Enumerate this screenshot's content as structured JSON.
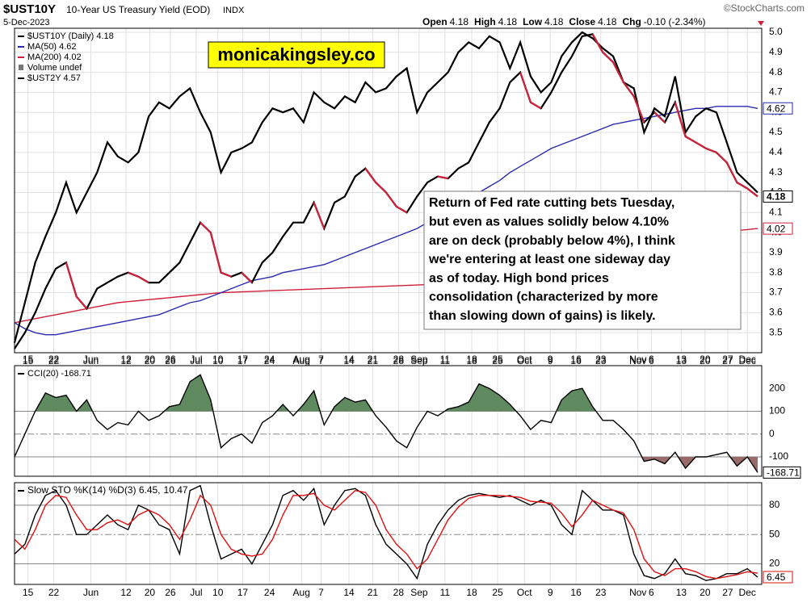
{
  "header": {
    "symbol": "$UST10Y",
    "name": "10-Year US Treasury Yield (EOD)",
    "exchange": "INDX",
    "date": "5-Dec-2023",
    "credit": "©StockCharts.com",
    "quote": [
      {
        "label": "Open",
        "value": 4.18
      },
      {
        "label": "High",
        "value": 4.18
      },
      {
        "label": "Low",
        "value": 4.18
      },
      {
        "label": "Close",
        "value": 4.18
      },
      {
        "label": "Chg",
        "value": "-0.10 (-2.34%)"
      }
    ]
  },
  "chart_data": [
    {
      "type": "line",
      "xlim": [
        0,
        72
      ],
      "ylim": [
        3.4,
        5.02
      ],
      "grid": true,
      "xticks": [
        {
          "value": 1.3,
          "label": "15"
        },
        {
          "value": 3.8,
          "label": "22"
        },
        {
          "value": 7.4,
          "label": "Jun"
        },
        {
          "value": 10.8,
          "label": "12"
        },
        {
          "value": 13.1,
          "label": "20"
        },
        {
          "value": 15.1,
          "label": "26"
        },
        {
          "value": 17.6,
          "label": "Jul"
        },
        {
          "value": 19.7,
          "label": "10"
        },
        {
          "value": 22.1,
          "label": "17"
        },
        {
          "value": 24.7,
          "label": "24"
        },
        {
          "value": 27.8,
          "label": "Aug"
        },
        {
          "value": 29.7,
          "label": "7"
        },
        {
          "value": 32.4,
          "label": "14"
        },
        {
          "value": 34.7,
          "label": "21"
        },
        {
          "value": 37.2,
          "label": "28"
        },
        {
          "value": 39.2,
          "label": "Sep"
        },
        {
          "value": 41.7,
          "label": "11"
        },
        {
          "value": 44.3,
          "label": "18"
        },
        {
          "value": 46.8,
          "label": "25"
        },
        {
          "value": 49.4,
          "label": "Oct"
        },
        {
          "value": 51.9,
          "label": "9"
        },
        {
          "value": 54.4,
          "label": "16"
        },
        {
          "value": 56.8,
          "label": "23"
        },
        {
          "value": 60.4,
          "label": "Nov"
        },
        {
          "value": 61.7,
          "label": "6"
        },
        {
          "value": 64.6,
          "label": "13"
        },
        {
          "value": 66.9,
          "label": "20"
        },
        {
          "value": 69.1,
          "label": "27"
        },
        {
          "value": 71.0,
          "label": "Dec"
        }
      ],
      "yticks": [
        3.5,
        3.6,
        3.7,
        3.8,
        3.9,
        {
          "value": 4,
          "label": "4.0"
        },
        4.1,
        4.2,
        4.3,
        4.4,
        4.5,
        4.6,
        4.7,
        4.8,
        4.9,
        {
          "value": 5,
          "label": "5.0"
        }
      ],
      "watermark": "monicakingsley.co",
      "annotation": [
        "Return of Fed rate cutting bets Tuesday,",
        "but even as values solidly below 4.10%",
        "are on deck (probably below 4%), I think",
        "we're entering at least one sideway day",
        "as of today. High bond prices",
        "consolidation (characterized by more",
        "than slowing down of gains) is likely."
      ],
      "legend_extra": "Volume undef",
      "series": [
        {
          "name": "MA(200) 4.02",
          "color": "#d0203a",
          "values": [
            3.55,
            3.56,
            3.57,
            3.58,
            3.59,
            3.6,
            3.61,
            3.62,
            3.63,
            3.64,
            3.65,
            3.655,
            3.66,
            3.665,
            3.67,
            3.675,
            3.68,
            3.685,
            3.69,
            3.695,
            3.7,
            3.702,
            3.704,
            3.706,
            3.708,
            3.71,
            3.712,
            3.714,
            3.716,
            3.718,
            3.72,
            3.722,
            3.724,
            3.726,
            3.728,
            3.73,
            3.732,
            3.734,
            3.736,
            3.738,
            3.74,
            3.75,
            3.76,
            3.77,
            3.78,
            3.79,
            3.8,
            3.81,
            3.82,
            3.83,
            3.84,
            3.85,
            3.86,
            3.87,
            3.88,
            3.89,
            3.9,
            3.91,
            3.92,
            3.93,
            3.94,
            3.95,
            3.955,
            3.96,
            3.965,
            3.97,
            3.975,
            3.98,
            3.99,
            4,
            4.01,
            4.015,
            4.02
          ]
        },
        {
          "name": "MA(50) 4.62",
          "color": "#2a2ab0",
          "values": [
            3.55,
            3.52,
            3.5,
            3.49,
            3.49,
            3.5,
            3.51,
            3.52,
            3.53,
            3.54,
            3.55,
            3.56,
            3.57,
            3.58,
            3.59,
            3.61,
            3.63,
            3.65,
            3.66,
            3.68,
            3.7,
            3.72,
            3.74,
            3.76,
            3.77,
            3.78,
            3.8,
            3.81,
            3.82,
            3.83,
            3.84,
            3.86,
            3.88,
            3.9,
            3.92,
            3.94,
            3.96,
            3.98,
            4,
            4.02,
            4.05,
            4.08,
            4.11,
            4.14,
            4.17,
            4.2,
            4.23,
            4.26,
            4.3,
            4.33,
            4.36,
            4.39,
            4.42,
            4.44,
            4.46,
            4.48,
            4.5,
            4.52,
            4.54,
            4.55,
            4.56,
            4.57,
            4.58,
            4.59,
            4.6,
            4.61,
            4.62,
            4.62,
            4.63,
            4.63,
            4.63,
            4.63,
            4.62
          ]
        },
        {
          "name": "$UST2Y 4.57",
          "color": "#000000",
          "values": [
            3.45,
            3.65,
            3.85,
            3.98,
            4.1,
            4.25,
            4.1,
            4.2,
            4.3,
            4.45,
            4.38,
            4.35,
            4.4,
            4.58,
            4.65,
            4.62,
            4.68,
            4.72,
            4.6,
            4.5,
            4.3,
            4.4,
            4.42,
            4.45,
            4.55,
            4.62,
            4.6,
            4.62,
            4.55,
            4.7,
            4.65,
            4.62,
            4.68,
            4.65,
            4.75,
            4.7,
            4.72,
            4.78,
            4.82,
            4.6,
            4.7,
            4.75,
            4.8,
            4.9,
            4.95,
            4.92,
            4.98,
            4.95,
            4.82,
            4.95,
            4.78,
            4.7,
            4.75,
            4.88,
            4.95,
            5,
            4.97,
            4.92,
            4.88,
            4.75,
            4.72,
            4.5,
            4.62,
            4.58,
            4.78,
            4.5,
            4.58,
            4.62,
            4.6,
            4.45,
            4.3,
            4.25,
            4.2
          ]
        },
        {
          "name": "$UST10Y (Daily) 4.18",
          "color": "#000000",
          "down_color": "#d0203a",
          "values": [
            3.42,
            3.5,
            3.6,
            3.72,
            3.82,
            3.85,
            3.68,
            3.62,
            3.72,
            3.75,
            3.78,
            3.8,
            3.78,
            3.75,
            3.75,
            3.8,
            3.85,
            3.95,
            4.05,
            4,
            3.8,
            3.78,
            3.8,
            3.75,
            3.85,
            3.9,
            3.98,
            4.05,
            4.05,
            4.15,
            4.02,
            4.15,
            4.18,
            4.28,
            4.32,
            4.25,
            4.2,
            4.13,
            4.1,
            4.18,
            4.25,
            4.28,
            4.27,
            4.32,
            4.35,
            4.45,
            4.55,
            4.62,
            4.75,
            4.8,
            4.65,
            4.62,
            4.7,
            4.8,
            4.88,
            4.98,
            4.99,
            4.9,
            4.85,
            4.75,
            4.68,
            4.55,
            4.6,
            4.55,
            4.65,
            4.48,
            4.45,
            4.42,
            4.4,
            4.35,
            4.25,
            4.22,
            4.18
          ]
        }
      ],
      "badges": [
        {
          "value": 4.62,
          "color": "#2a2ab0",
          "fill": "#ffffff"
        },
        {
          "value": 4.18,
          "color": "#000000",
          "fill": "#ffffff",
          "bold": true
        },
        {
          "value": 4.02,
          "color": "#d0203a",
          "fill": "#ffffff"
        }
      ]
    },
    {
      "type": "cci",
      "xlim": [
        0,
        72
      ],
      "ylim": [
        -185,
        300
      ],
      "yticks": [
        200,
        100,
        0,
        -100
      ],
      "lines": [
        {
          "value": 100
        },
        {
          "value": 0,
          "dash": true
        },
        {
          "value": -100
        }
      ],
      "fill_above": "#5f8a5f",
      "fill_below": "#9a6b6b",
      "series": [
        {
          "name": "CCI(20) -168.71",
          "color": "#000000",
          "values": [
            -100,
            0,
            100,
            180,
            160,
            170,
            100,
            150,
            60,
            20,
            50,
            40,
            100,
            60,
            80,
            120,
            130,
            230,
            260,
            150,
            -60,
            -20,
            0,
            -40,
            50,
            80,
            130,
            80,
            130,
            190,
            40,
            120,
            160,
            140,
            150,
            80,
            30,
            -30,
            -60,
            30,
            100,
            80,
            110,
            120,
            140,
            220,
            200,
            170,
            130,
            80,
            20,
            60,
            50,
            150,
            190,
            200,
            120,
            60,
            60,
            20,
            -30,
            -120,
            -110,
            -130,
            -80,
            -150,
            -100,
            -100,
            -90,
            -80,
            -140,
            -100,
            -168.71
          ]
        }
      ],
      "badges": [
        {
          "value": -168.71,
          "color": "#000000",
          "fill": "#ffffff"
        }
      ]
    },
    {
      "type": "sto",
      "xlim": [
        0,
        72
      ],
      "ylim": [
        -1,
        103
      ],
      "yticks": [
        80,
        50,
        20
      ],
      "lines": [
        {
          "value": 80
        },
        {
          "value": 50,
          "dash": true
        },
        {
          "value": 20
        }
      ],
      "xticks": [
        {
          "value": 1.3,
          "label": "15"
        },
        {
          "value": 3.8,
          "label": "22"
        },
        {
          "value": 7.4,
          "label": "Jun"
        },
        {
          "value": 10.8,
          "label": "12"
        },
        {
          "value": 13.1,
          "label": "20"
        },
        {
          "value": 15.1,
          "label": "26"
        },
        {
          "value": 17.6,
          "label": "Jul"
        },
        {
          "value": 19.7,
          "label": "10"
        },
        {
          "value": 22.1,
          "label": "17"
        },
        {
          "value": 24.7,
          "label": "24"
        },
        {
          "value": 27.8,
          "label": "Aug"
        },
        {
          "value": 29.7,
          "label": "7"
        },
        {
          "value": 32.4,
          "label": "14"
        },
        {
          "value": 34.7,
          "label": "21"
        },
        {
          "value": 37.2,
          "label": "28"
        },
        {
          "value": 39.2,
          "label": "Sep"
        },
        {
          "value": 41.7,
          "label": "11"
        },
        {
          "value": 44.3,
          "label": "18"
        },
        {
          "value": 46.8,
          "label": "25"
        },
        {
          "value": 49.4,
          "label": "Oct"
        },
        {
          "value": 51.9,
          "label": "9"
        },
        {
          "value": 54.4,
          "label": "16"
        },
        {
          "value": 56.8,
          "label": "23"
        },
        {
          "value": 60.4,
          "label": "Nov"
        },
        {
          "value": 61.7,
          "label": "6"
        },
        {
          "value": 64.6,
          "label": "13"
        },
        {
          "value": 66.9,
          "label": "20"
        },
        {
          "value": 69.1,
          "label": "27"
        },
        {
          "value": 71.0,
          "label": "Dec"
        }
      ],
      "series": [
        {
          "name": "Slow STO %K(14) %D(3) 6.45,",
          "color": "#000000",
          "values": [
            30,
            40,
            70,
            90,
            95,
            80,
            50,
            50,
            60,
            70,
            60,
            55,
            80,
            75,
            60,
            55,
            30,
            95,
            100,
            60,
            25,
            30,
            35,
            20,
            40,
            60,
            90,
            95,
            85,
            97,
            60,
            80,
            95,
            97,
            90,
            60,
            40,
            30,
            20,
            5,
            40,
            60,
            75,
            85,
            90,
            92,
            90,
            88,
            90,
            85,
            80,
            85,
            80,
            60,
            50,
            95,
            85,
            75,
            75,
            70,
            30,
            8,
            5,
            10,
            25,
            10,
            8,
            3,
            5,
            10,
            10,
            15,
            6.45
          ]
        },
        {
          "name": "10.47",
          "color": "#e01010",
          "values": [
            45,
            35,
            55,
            80,
            90,
            88,
            70,
            55,
            55,
            62,
            65,
            60,
            70,
            75,
            70,
            60,
            45,
            65,
            90,
            80,
            50,
            35,
            30,
            28,
            30,
            45,
            70,
            90,
            90,
            92,
            80,
            75,
            85,
            95,
            93,
            80,
            55,
            40,
            30,
            15,
            25,
            45,
            65,
            78,
            87,
            90,
            90,
            90,
            89,
            88,
            84,
            83,
            82,
            72,
            58,
            70,
            85,
            80,
            75,
            72,
            55,
            25,
            12,
            8,
            15,
            15,
            12,
            7,
            5,
            7,
            9,
            12,
            10.47
          ]
        }
      ],
      "badges": [
        {
          "value": 6.45,
          "color": "#000000",
          "fill": "#ffffff",
          "border": "#e01010"
        }
      ]
    }
  ]
}
